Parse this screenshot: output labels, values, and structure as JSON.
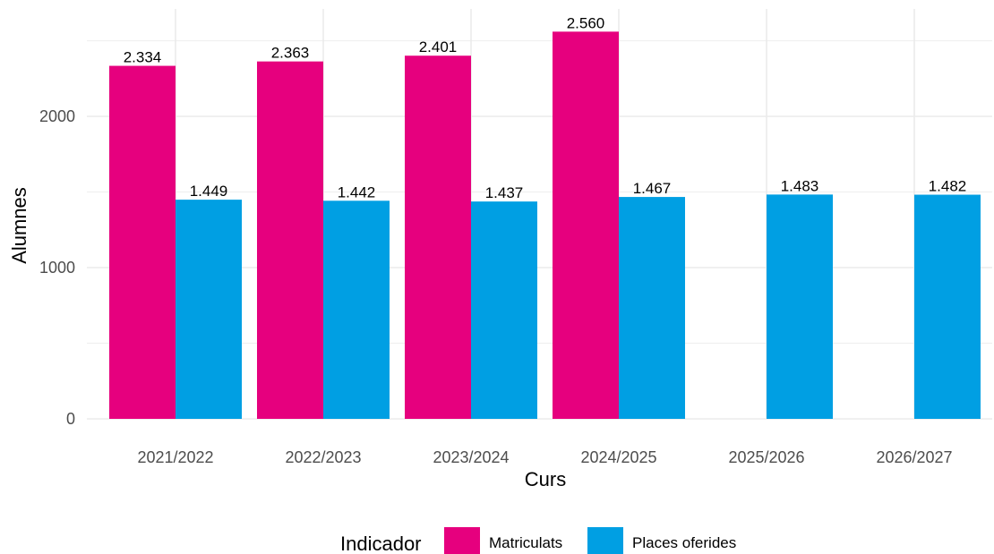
{
  "chart_data": {
    "type": "bar",
    "title": "",
    "xlabel": "Curs",
    "ylabel": "Alumnes",
    "categories": [
      "2021/2022",
      "2022/2023",
      "2023/2024",
      "2024/2025",
      "2025/2026",
      "2026/2027"
    ],
    "series": [
      {
        "name": "Matriculats",
        "color": "#E6007E",
        "values": [
          2334,
          2363,
          2401,
          2560,
          null,
          null
        ],
        "labels": [
          "2.334",
          "2.363",
          "2.401",
          "2.560",
          "",
          ""
        ]
      },
      {
        "name": "Places oferides",
        "color": "#009FE3",
        "values": [
          1449,
          1442,
          1437,
          1467,
          1483,
          1482
        ],
        "labels": [
          "1.449",
          "1.442",
          "1.437",
          "1.467",
          "1.483",
          "1.482"
        ]
      }
    ],
    "yticks": [
      0,
      1000,
      2000
    ],
    "ytick_labels": [
      "0",
      "1000",
      "2000"
    ],
    "ylim": [
      0,
      2650
    ],
    "grid": true,
    "legend": {
      "title": "Indicador",
      "position": "bottom"
    }
  }
}
